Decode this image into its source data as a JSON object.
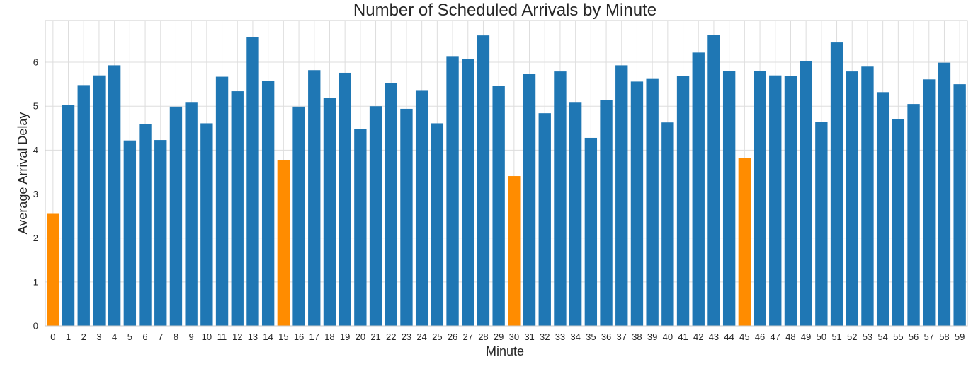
{
  "chart_data": {
    "type": "bar",
    "title": "Number of Scheduled Arrivals by Minute",
    "xlabel": "Minute",
    "ylabel": "Average Arrival Delay",
    "ylim": [
      0,
      6.95
    ],
    "yticks": [
      0,
      1,
      2,
      3,
      4,
      5,
      6
    ],
    "grid": true,
    "categories": [
      "0",
      "1",
      "2",
      "3",
      "4",
      "5",
      "6",
      "7",
      "8",
      "9",
      "10",
      "11",
      "12",
      "13",
      "14",
      "15",
      "16",
      "17",
      "18",
      "19",
      "20",
      "21",
      "22",
      "23",
      "24",
      "25",
      "26",
      "27",
      "28",
      "29",
      "30",
      "31",
      "32",
      "33",
      "34",
      "35",
      "36",
      "37",
      "38",
      "39",
      "40",
      "41",
      "42",
      "43",
      "44",
      "45",
      "46",
      "47",
      "48",
      "49",
      "50",
      "51",
      "52",
      "53",
      "54",
      "55",
      "56",
      "57",
      "58",
      "59"
    ],
    "values": [
      2.55,
      5.02,
      5.48,
      5.7,
      5.93,
      4.22,
      4.6,
      4.23,
      4.99,
      5.08,
      4.61,
      5.67,
      5.34,
      6.58,
      5.58,
      3.77,
      4.99,
      5.82,
      5.19,
      5.76,
      4.48,
      5.0,
      5.53,
      4.94,
      5.35,
      4.61,
      6.14,
      6.08,
      6.61,
      5.46,
      3.41,
      5.73,
      4.84,
      5.79,
      5.08,
      4.28,
      5.14,
      5.93,
      5.56,
      5.62,
      4.63,
      5.68,
      6.22,
      6.62,
      5.8,
      3.82,
      5.8,
      5.7,
      5.68,
      6.03,
      4.64,
      6.45,
      5.79,
      5.9,
      5.32,
      4.7,
      5.05,
      5.61,
      5.99,
      5.5
    ],
    "highlighted_categories": [
      "0",
      "15",
      "30",
      "45"
    ],
    "colors": {
      "default": "#1f77b4",
      "highlight": "#ff8c00",
      "grid": "#dddddd",
      "axes_edge": "#cccccc"
    }
  }
}
